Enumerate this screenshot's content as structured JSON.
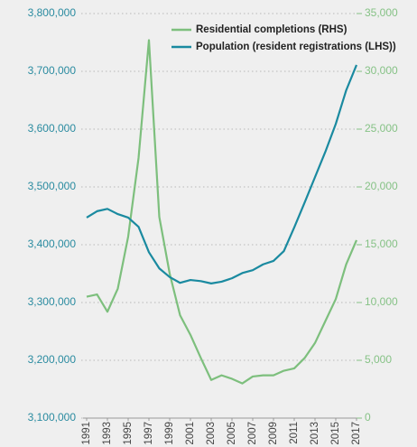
{
  "chart_data": {
    "type": "line",
    "x": [
      1991,
      1992,
      1993,
      1994,
      1995,
      1996,
      1997,
      1998,
      1999,
      2000,
      2001,
      2002,
      2003,
      2004,
      2005,
      2006,
      2007,
      2008,
      2009,
      2010,
      2011,
      2012,
      2013,
      2014,
      2015,
      2016,
      2017
    ],
    "xlim": [
      1991,
      2017
    ],
    "xticks": [
      1991,
      1993,
      1995,
      1997,
      1999,
      2001,
      2003,
      2005,
      2007,
      2009,
      2011,
      2013,
      2015,
      2017
    ],
    "ylim": [
      3100000,
      3800000
    ],
    "yticks": [
      {
        "value": 3100000,
        "label": "3,100,000"
      },
      {
        "value": 3200000,
        "label": "3,200,000"
      },
      {
        "value": 3300000,
        "label": "3,300,000"
      },
      {
        "value": 3400000,
        "label": "3,400,000"
      },
      {
        "value": 3500000,
        "label": "3,500,000"
      },
      {
        "value": 3600000,
        "label": "3,600,000"
      },
      {
        "value": 3700000,
        "label": "3,700,000"
      },
      {
        "value": 3800000,
        "label": "3,800,000"
      }
    ],
    "y2lim": [
      0,
      35000
    ],
    "y2ticks": [
      0,
      {
        "value": 5000,
        "label": "5,000"
      },
      {
        "value": 10000,
        "label": "10,000"
      },
      {
        "value": 15000,
        "label": "15,000"
      },
      {
        "value": 20000,
        "label": "20,000"
      },
      {
        "value": 25000,
        "label": "25,000"
      },
      {
        "value": 30000,
        "label": "30,000"
      },
      {
        "value": 35000,
        "label": "35,000"
      }
    ],
    "grid": true,
    "series": [
      {
        "name": "Residential completions (RHS)",
        "color": "#7dbf7d",
        "axis": "y2",
        "values": [
          10500,
          10700,
          9200,
          11200,
          15700,
          22500,
          32700,
          17400,
          12500,
          8900,
          7200,
          5200,
          3300,
          3700,
          3400,
          3000,
          3600,
          3700,
          3700,
          4100,
          4300,
          5200,
          6500,
          8400,
          10300,
          13300,
          15400
        ]
      },
      {
        "name": "Population (resident registrations (LHS))",
        "color": "#1a8aa0",
        "values": [
          3447000,
          3458000,
          3462000,
          3453000,
          3447000,
          3431000,
          3387000,
          3359000,
          3344000,
          3334000,
          3339000,
          3337000,
          3333000,
          3336000,
          3342000,
          3351000,
          3356000,
          3366000,
          3372000,
          3389000,
          3430000,
          3473000,
          3517000,
          3561000,
          3609000,
          3667000,
          3711000
        ]
      }
    ]
  }
}
